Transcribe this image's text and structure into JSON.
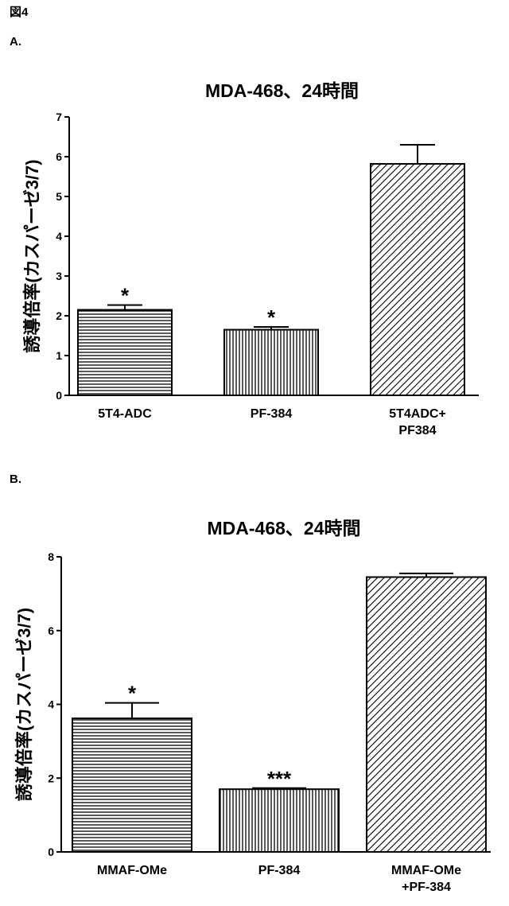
{
  "figure_label": "図4",
  "panels": [
    {
      "label": "A."
    },
    {
      "label": "B."
    }
  ],
  "chart_data": [
    {
      "type": "bar",
      "title": "MDA-468、24時間",
      "ylabel": "誘導倍率(カスパーゼ3/7)",
      "xlabel": "",
      "ylim": [
        0,
        7
      ],
      "yticks": [
        0,
        1,
        2,
        3,
        4,
        5,
        6,
        7
      ],
      "categories": [
        [
          "5T4-ADC"
        ],
        [
          "PF-384"
        ],
        [
          "5T4ADC+",
          "PF384"
        ]
      ],
      "values": [
        2.15,
        1.65,
        5.82
      ],
      "errors": [
        0.12,
        0.07,
        0.48
      ],
      "annotations": [
        "*",
        "*",
        ""
      ],
      "patterns": [
        "horizontal-lines",
        "vertical-lines",
        "diagonal-lines"
      ],
      "grid": false
    },
    {
      "type": "bar",
      "title": "MDA-468、24時間",
      "ylabel": "誘導倍率(カスパーゼ3/7)",
      "xlabel": "",
      "ylim": [
        0,
        8
      ],
      "yticks": [
        0,
        2,
        4,
        6,
        8
      ],
      "categories": [
        [
          "MMAF-OMe"
        ],
        [
          "PF-384"
        ],
        [
          "MMAF-OMe",
          "+PF-384"
        ]
      ],
      "values": [
        3.62,
        1.7,
        7.45
      ],
      "errors": [
        0.42,
        0.03,
        0.1
      ],
      "annotations": [
        "*",
        "***",
        ""
      ],
      "patterns": [
        "horizontal-lines",
        "vertical-lines",
        "diagonal-lines"
      ],
      "grid": false
    }
  ]
}
